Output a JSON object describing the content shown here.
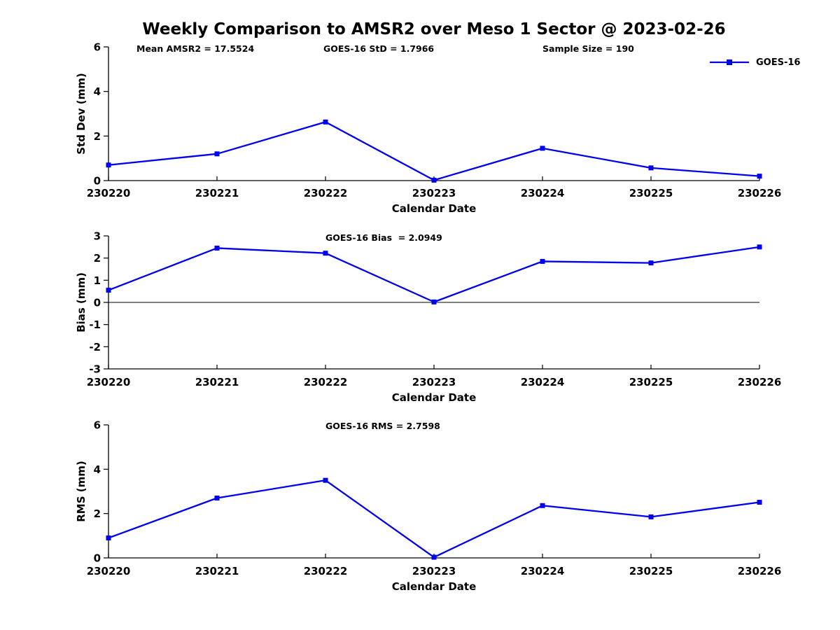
{
  "figure": {
    "title": "Weekly Comparison to AMSR2 over Meso 1 Sector @ 2023-02-26",
    "legend": {
      "series": "GOES-16",
      "color": "#0000EE"
    }
  },
  "chart_data": [
    {
      "type": "line",
      "categories": [
        "230220",
        "230221",
        "230222",
        "230223",
        "230224",
        "230225",
        "230226"
      ],
      "series": [
        {
          "name": "GOES-16",
          "values": [
            0.7,
            1.2,
            2.63,
            0.02,
            1.45,
            0.57,
            0.2
          ]
        }
      ],
      "annotations": [
        "Mean AMSR2 = 17.5524",
        "GOES-16 StD = 1.7966",
        "Sample Size = 190"
      ],
      "xlabel": "Calendar Date",
      "ylabel": "Std Dev (mm)",
      "ylim": [
        0,
        6
      ],
      "yticks": [
        0,
        2,
        4,
        6
      ],
      "zero_line": false,
      "line_color": "#0000EE",
      "marker": "square",
      "legend_position": "top-right-outside",
      "grid": false
    },
    {
      "type": "line",
      "categories": [
        "230220",
        "230221",
        "230222",
        "230223",
        "230224",
        "230225",
        "230226"
      ],
      "series": [
        {
          "name": "GOES-16",
          "values": [
            0.55,
            2.45,
            2.22,
            0.02,
            1.85,
            1.78,
            2.5
          ]
        }
      ],
      "annotations": [
        "GOES-16 Bias  = 2.0949"
      ],
      "xlabel": "Calendar Date",
      "ylabel": "Bias (mm)",
      "ylim": [
        -3,
        3
      ],
      "yticks": [
        3,
        2,
        1,
        0,
        -1,
        -2,
        -3
      ],
      "zero_line": true,
      "line_color": "#0000EE",
      "marker": "square",
      "grid": false
    },
    {
      "type": "line",
      "categories": [
        "230220",
        "230221",
        "230222",
        "230223",
        "230224",
        "230225",
        "230226"
      ],
      "series": [
        {
          "name": "GOES-16",
          "values": [
            0.9,
            2.7,
            3.5,
            0.03,
            2.36,
            1.85,
            2.51
          ]
        }
      ],
      "annotations": [
        "GOES-16 RMS = 2.7598"
      ],
      "xlabel": "Calendar Date",
      "ylabel": "RMS (mm)",
      "ylim": [
        0,
        6
      ],
      "yticks": [
        0,
        2,
        4,
        6
      ],
      "zero_line": false,
      "line_color": "#0000EE",
      "marker": "square",
      "grid": false
    }
  ]
}
